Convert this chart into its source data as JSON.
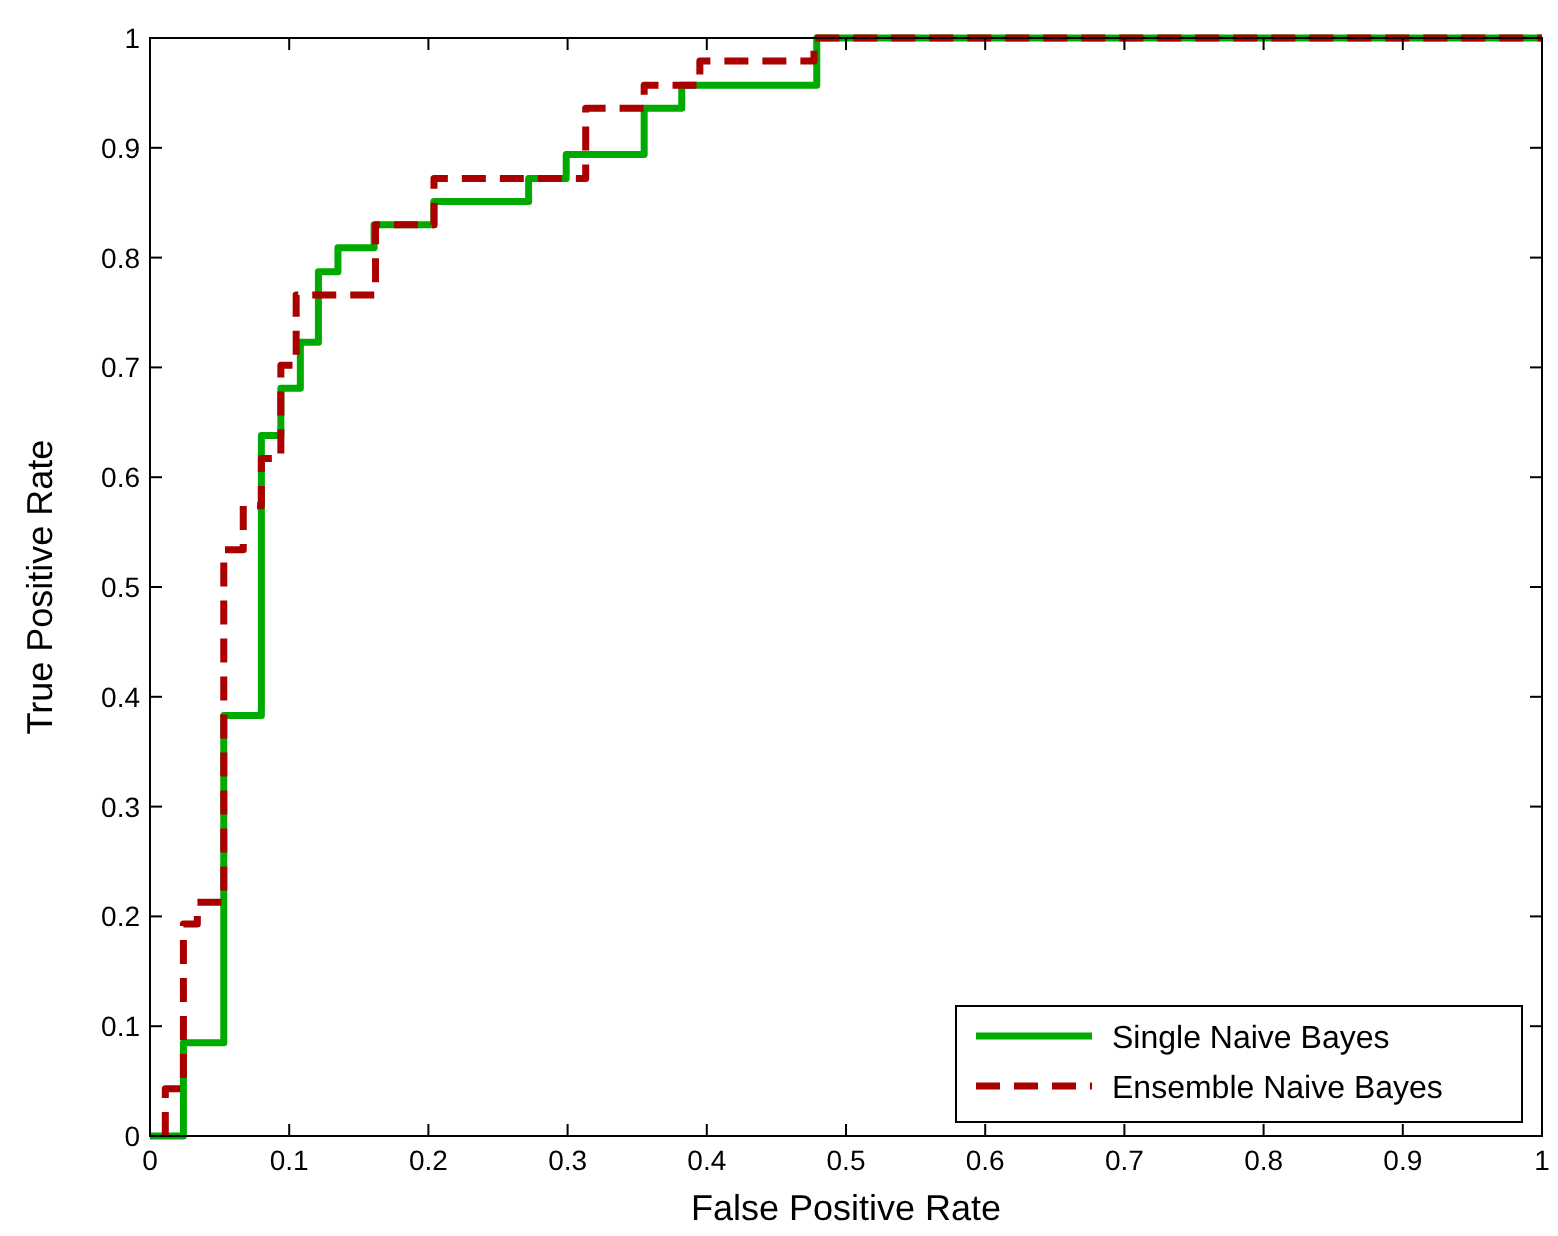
{
  "chart_data": {
    "type": "step",
    "xlabel": "False Positive Rate",
    "ylabel": "True Positive Rate",
    "xlim": [
      0,
      1
    ],
    "ylim": [
      0,
      1
    ],
    "xticks": [
      0,
      0.1,
      0.2,
      0.3,
      0.4,
      0.5,
      0.6,
      0.7,
      0.8,
      0.9,
      1
    ],
    "yticks": [
      0,
      0.1,
      0.2,
      0.3,
      0.4,
      0.5,
      0.6,
      0.7,
      0.8,
      0.9,
      1
    ],
    "grid": false,
    "legend": "bottom right",
    "series": [
      {
        "name": "Single Naive Bayes",
        "color": "#00aa00",
        "line_style": "solid",
        "x": [
          0,
          0.024,
          0.053,
          0.08,
          0.094,
          0.108,
          0.121,
          0.135,
          0.161,
          0.204,
          0.272,
          0.299,
          0.355,
          0.382,
          0.479,
          1
        ],
        "values": [
          0,
          0.085,
          0.383,
          0.638,
          0.681,
          0.723,
          0.787,
          0.809,
          0.83,
          0.851,
          0.872,
          0.894,
          0.936,
          0.957,
          1,
          1
        ]
      },
      {
        "name": "Ensemble Naive Bayes",
        "color": "#aa0000",
        "line_style": "dashed",
        "x": [
          0.011,
          0.011,
          0.024,
          0.034,
          0.053,
          0.067,
          0.08,
          0.094,
          0.105,
          0.162,
          0.204,
          0.313,
          0.355,
          0.395,
          0.477,
          1
        ],
        "values": [
          0,
          0.043,
          0.193,
          0.213,
          0.534,
          0.574,
          0.617,
          0.702,
          0.766,
          0.83,
          0.872,
          0.936,
          0.957,
          0.979,
          1,
          1
        ]
      }
    ]
  }
}
